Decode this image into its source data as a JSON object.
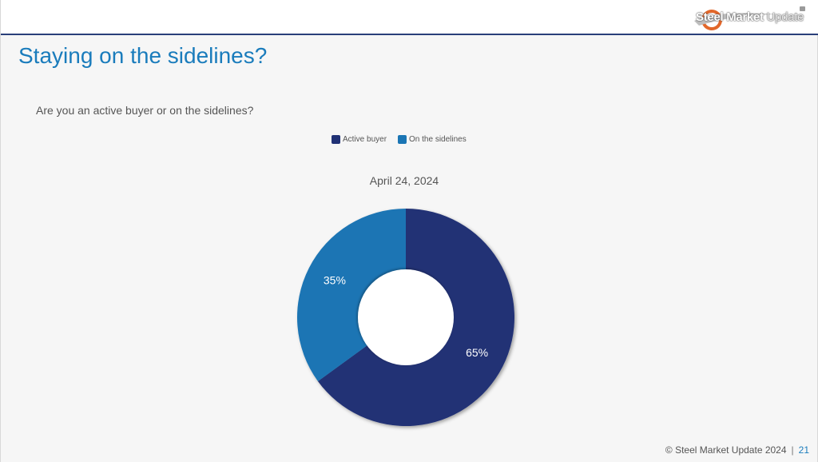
{
  "header": {
    "logo_text_bold": "Steel Market",
    "logo_text_light": "Update",
    "logo_mark": "SM"
  },
  "slide": {
    "title": "Staying on the sidelines?",
    "question": "Are you an active buyer or on the sidelines?"
  },
  "footer": {
    "copyright": "© Steel Market Update 2024",
    "separator": "|",
    "page_number": "21"
  },
  "colors": {
    "active_buyer": "#203175",
    "on_the_sidelines": "#1a75b4",
    "title": "#1a7cbc"
  },
  "chart_data": {
    "type": "pie",
    "subtype": "doughnut",
    "title": "April 24, 2024",
    "legend_position": "top",
    "series": [
      {
        "name": "Active buyer",
        "value": 65,
        "label": "65%"
      },
      {
        "name": "On the sidelines",
        "value": 35,
        "label": "35%"
      }
    ]
  }
}
